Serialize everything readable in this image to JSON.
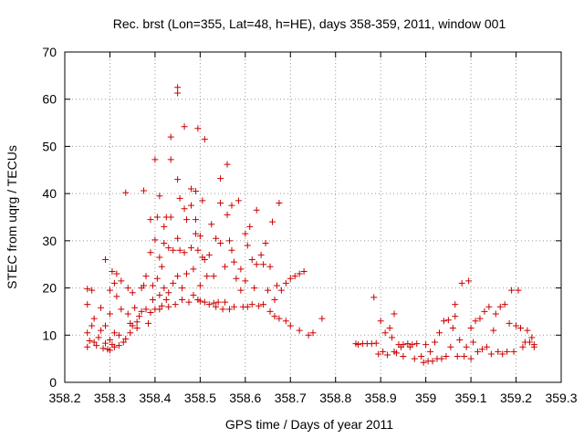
{
  "chart_data": {
    "type": "scatter",
    "title": "Rec. brst (Lon=355, Lat=48, h=HE), days 358-359, 2011, window 001",
    "xlabel": "GPS time / Days of year 2011",
    "ylabel": "STEC from uqrg / TECUs",
    "xlim": [
      358.2,
      359.3
    ],
    "ylim": [
      0,
      70
    ],
    "x_ticks": [
      "358.2",
      "358.3",
      "358.4",
      "358.5",
      "358.6",
      "358.7",
      "358.8",
      "358.9",
      "359",
      "359.1",
      "359.2",
      "359.3"
    ],
    "y_ticks": [
      "0",
      "10",
      "20",
      "30",
      "40",
      "50",
      "60",
      "70"
    ],
    "grid": true,
    "marker": "+",
    "colors": {
      "points": "#cc0000",
      "grid": "#999999",
      "axis": "#000000"
    },
    "points": [
      [
        358.25,
        7.5
      ],
      [
        358.25,
        10.5
      ],
      [
        358.25,
        16.5
      ],
      [
        358.25,
        19.8
      ],
      [
        358.255,
        8.8
      ],
      [
        358.26,
        12.0
      ],
      [
        358.26,
        19.5
      ],
      [
        358.265,
        8.5
      ],
      [
        358.265,
        13.5
      ],
      [
        358.27,
        7.8
      ],
      [
        358.275,
        9.5
      ],
      [
        358.28,
        11.0
      ],
      [
        358.28,
        15.8
      ],
      [
        358.285,
        7.2
      ],
      [
        358.29,
        8.3
      ],
      [
        358.29,
        12.0
      ],
      [
        358.29,
        26.0
      ],
      [
        358.295,
        7.0
      ],
      [
        358.3,
        6.8
      ],
      [
        358.3,
        9.0
      ],
      [
        358.3,
        14.5
      ],
      [
        358.3,
        19.5
      ],
      [
        358.305,
        8.0
      ],
      [
        358.305,
        23.5
      ],
      [
        358.31,
        7.5
      ],
      [
        358.31,
        10.5
      ],
      [
        358.31,
        21.0
      ],
      [
        358.315,
        18.2
      ],
      [
        358.315,
        23.0
      ],
      [
        358.32,
        7.8
      ],
      [
        358.32,
        10.0
      ],
      [
        358.325,
        15.5
      ],
      [
        358.325,
        21.5
      ],
      [
        358.33,
        8.5
      ],
      [
        358.335,
        40.2
      ],
      [
        358.335,
        9.2
      ],
      [
        358.34,
        14.5
      ],
      [
        358.34,
        20.0
      ],
      [
        358.345,
        10.5
      ],
      [
        358.345,
        12.5
      ],
      [
        358.35,
        19.0
      ],
      [
        358.35,
        12.0
      ],
      [
        358.355,
        15.8
      ],
      [
        358.36,
        11.5
      ],
      [
        358.36,
        12.8
      ],
      [
        358.365,
        14.0
      ],
      [
        358.37,
        15.0
      ],
      [
        358.37,
        20.0
      ],
      [
        358.375,
        40.6
      ],
      [
        358.375,
        20.5
      ],
      [
        358.38,
        15.5
      ],
      [
        358.38,
        22.5
      ],
      [
        358.385,
        12.5
      ],
      [
        358.39,
        34.5
      ],
      [
        358.39,
        14.8
      ],
      [
        358.39,
        27.5
      ],
      [
        358.395,
        17.5
      ],
      [
        358.395,
        20.5
      ],
      [
        358.4,
        30.2
      ],
      [
        358.4,
        15.5
      ],
      [
        358.4,
        47.2
      ],
      [
        358.405,
        35.0
      ],
      [
        358.405,
        22.0
      ],
      [
        358.41,
        39.5
      ],
      [
        358.41,
        26.5
      ],
      [
        358.41,
        18.5
      ],
      [
        358.41,
        15.5
      ],
      [
        358.415,
        24.5
      ],
      [
        358.415,
        16.2
      ],
      [
        358.42,
        20.0
      ],
      [
        358.42,
        33.0
      ],
      [
        358.42,
        29.5
      ],
      [
        358.425,
        17.5
      ],
      [
        358.425,
        35.0
      ],
      [
        358.43,
        28.5
      ],
      [
        358.43,
        19.0
      ],
      [
        358.43,
        16.0
      ],
      [
        358.435,
        47.2
      ],
      [
        358.435,
        52.0
      ],
      [
        358.435,
        35.0
      ],
      [
        358.44,
        21.0
      ],
      [
        358.44,
        28.0
      ],
      [
        358.445,
        16.5
      ],
      [
        358.45,
        62.5
      ],
      [
        358.45,
        61.3
      ],
      [
        358.45,
        43.0
      ],
      [
        358.45,
        30.5
      ],
      [
        358.45,
        22.5
      ],
      [
        358.455,
        28.0
      ],
      [
        358.455,
        39.0
      ],
      [
        358.46,
        20.0
      ],
      [
        358.46,
        17.5
      ],
      [
        358.465,
        54.2
      ],
      [
        358.465,
        36.8
      ],
      [
        358.465,
        27.5
      ],
      [
        358.47,
        34.5
      ],
      [
        358.47,
        23.0
      ],
      [
        358.475,
        17.0
      ],
      [
        358.48,
        41.0
      ],
      [
        358.48,
        37.5
      ],
      [
        358.48,
        28.5
      ],
      [
        358.485,
        24.0
      ],
      [
        358.485,
        18.5
      ],
      [
        358.49,
        34.5
      ],
      [
        358.49,
        31.5
      ],
      [
        358.49,
        40.5
      ],
      [
        358.495,
        53.8
      ],
      [
        358.495,
        28.0
      ],
      [
        358.495,
        17.5
      ],
      [
        358.5,
        31.0
      ],
      [
        358.5,
        20.5
      ],
      [
        358.5,
        17.2
      ],
      [
        358.505,
        38.5
      ],
      [
        358.505,
        26.5
      ],
      [
        358.51,
        51.5
      ],
      [
        358.51,
        26.0
      ],
      [
        358.51,
        17.0
      ],
      [
        358.515,
        22.5
      ],
      [
        358.52,
        27.0
      ],
      [
        358.52,
        16.5
      ],
      [
        358.525,
        33.5
      ],
      [
        358.53,
        22.5
      ],
      [
        358.53,
        16.8
      ],
      [
        358.535,
        30.5
      ],
      [
        358.535,
        16.0
      ],
      [
        358.54,
        17.0
      ],
      [
        358.545,
        43.2
      ],
      [
        358.545,
        38.0
      ],
      [
        358.545,
        29.5
      ],
      [
        358.55,
        15.5
      ],
      [
        358.555,
        24.5
      ],
      [
        358.555,
        17.0
      ],
      [
        358.56,
        46.2
      ],
      [
        358.56,
        35.5
      ],
      [
        358.565,
        30.0
      ],
      [
        358.565,
        15.5
      ],
      [
        358.57,
        37.5
      ],
      [
        358.57,
        28.0
      ],
      [
        358.575,
        25.5
      ],
      [
        358.575,
        16.0
      ],
      [
        358.58,
        22.0
      ],
      [
        358.585,
        38.5
      ],
      [
        358.59,
        24.0
      ],
      [
        358.59,
        19.5
      ],
      [
        358.595,
        16.0
      ],
      [
        358.6,
        31.5
      ],
      [
        358.6,
        21.5
      ],
      [
        358.605,
        29.0
      ],
      [
        358.605,
        16.0
      ],
      [
        358.61,
        33.0
      ],
      [
        358.615,
        26.0
      ],
      [
        358.615,
        16.5
      ],
      [
        358.62,
        20.0
      ],
      [
        358.625,
        36.5
      ],
      [
        358.625,
        25.0
      ],
      [
        358.63,
        16.2
      ],
      [
        358.635,
        27.0
      ],
      [
        358.64,
        25.0
      ],
      [
        358.64,
        16.5
      ],
      [
        358.645,
        29.5
      ],
      [
        358.65,
        19.5
      ],
      [
        358.655,
        24.5
      ],
      [
        358.655,
        15.0
      ],
      [
        358.66,
        34.0
      ],
      [
        358.665,
        17.5
      ],
      [
        358.665,
        14.0
      ],
      [
        358.67,
        20.5
      ],
      [
        358.675,
        38.0
      ],
      [
        358.675,
        13.5
      ],
      [
        358.68,
        19.5
      ],
      [
        358.69,
        13.0
      ],
      [
        358.69,
        21.0
      ],
      [
        358.7,
        22.0
      ],
      [
        358.7,
        12.0
      ],
      [
        358.71,
        22.5
      ],
      [
        358.72,
        11.0
      ],
      [
        358.72,
        23.0
      ],
      [
        358.73,
        23.5
      ],
      [
        358.74,
        10.0
      ],
      [
        358.75,
        10.5
      ],
      [
        358.77,
        13.5
      ],
      [
        358.845,
        8.2
      ],
      [
        358.85,
        8.0
      ],
      [
        358.86,
        8.2
      ],
      [
        358.87,
        8.2
      ],
      [
        358.88,
        8.2
      ],
      [
        358.885,
        18.0
      ],
      [
        358.89,
        8.3
      ],
      [
        358.895,
        6.0
      ],
      [
        358.9,
        13.0
      ],
      [
        358.905,
        6.5
      ],
      [
        358.91,
        10.5
      ],
      [
        358.915,
        5.8
      ],
      [
        358.92,
        11.5
      ],
      [
        358.925,
        9.5
      ],
      [
        358.93,
        6.5
      ],
      [
        358.93,
        14.5
      ],
      [
        358.935,
        6.2
      ],
      [
        358.94,
        8.0
      ],
      [
        358.945,
        7.5
      ],
      [
        358.95,
        8.0
      ],
      [
        358.95,
        5.5
      ],
      [
        358.96,
        8.2
      ],
      [
        358.965,
        7.5
      ],
      [
        358.97,
        8.0
      ],
      [
        358.975,
        5.0
      ],
      [
        358.98,
        8.2
      ],
      [
        358.99,
        5.5
      ],
      [
        358.995,
        4.2
      ],
      [
        359.0,
        8.0
      ],
      [
        359.005,
        4.5
      ],
      [
        359.01,
        6.5
      ],
      [
        359.015,
        4.5
      ],
      [
        359.02,
        8.5
      ],
      [
        359.025,
        5.0
      ],
      [
        359.03,
        10.5
      ],
      [
        359.035,
        5.0
      ],
      [
        359.04,
        13.0
      ],
      [
        359.045,
        5.5
      ],
      [
        359.05,
        13.2
      ],
      [
        359.055,
        7.5
      ],
      [
        359.06,
        11.5
      ],
      [
        359.065,
        16.5
      ],
      [
        359.065,
        14.0
      ],
      [
        359.07,
        5.5
      ],
      [
        359.075,
        9.0
      ],
      [
        359.08,
        21.0
      ],
      [
        359.085,
        5.5
      ],
      [
        359.09,
        7.5
      ],
      [
        359.095,
        21.5
      ],
      [
        359.1,
        5.0
      ],
      [
        359.1,
        11.5
      ],
      [
        359.105,
        8.5
      ],
      [
        359.11,
        13.0
      ],
      [
        359.115,
        6.5
      ],
      [
        359.12,
        13.5
      ],
      [
        359.125,
        7.0
      ],
      [
        359.13,
        15.0
      ],
      [
        359.135,
        7.5
      ],
      [
        359.14,
        16.0
      ],
      [
        359.145,
        6.0
      ],
      [
        359.15,
        11.0
      ],
      [
        359.155,
        14.5
      ],
      [
        359.16,
        6.5
      ],
      [
        359.165,
        16.0
      ],
      [
        359.17,
        6.0
      ],
      [
        359.175,
        16.5
      ],
      [
        359.18,
        6.5
      ],
      [
        359.185,
        12.5
      ],
      [
        359.19,
        19.5
      ],
      [
        359.195,
        6.5
      ],
      [
        359.2,
        12.0
      ],
      [
        359.205,
        19.5
      ],
      [
        359.21,
        11.5
      ],
      [
        359.215,
        7.5
      ],
      [
        359.22,
        8.5
      ],
      [
        359.225,
        11.0
      ],
      [
        359.23,
        8.5
      ],
      [
        359.235,
        9.5
      ],
      [
        359.24,
        7.5
      ],
      [
        359.24,
        8.0
      ]
    ]
  }
}
